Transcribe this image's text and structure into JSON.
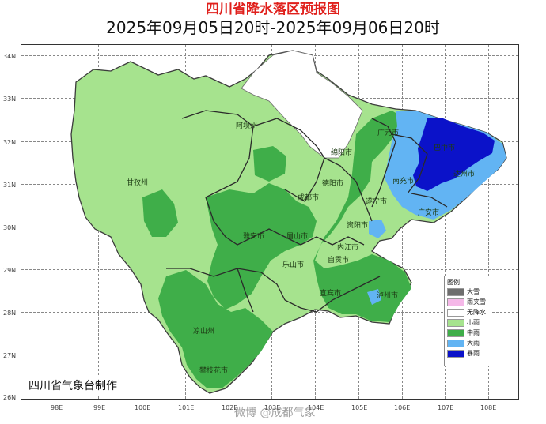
{
  "title": "四川省降水落区预报图",
  "subtitle": "2025年09月05日20时-2025年09月06日20时",
  "latitude_labels": [
    "34N",
    "33N",
    "32N",
    "31N",
    "30N",
    "29N",
    "28N",
    "27N",
    "26N"
  ],
  "longitude_labels": [
    "98E",
    "99E",
    "100E",
    "101E",
    "102E",
    "103E",
    "104E",
    "105E",
    "106E",
    "107E",
    "108E"
  ],
  "cities": [
    "阿坝州",
    "甘孜州",
    "绵阳市",
    "广元市",
    "巴中市",
    "达州市",
    "南充市",
    "德阳市",
    "成都市",
    "遂宁市",
    "广安市",
    "雅安市",
    "眉山市",
    "资阳市",
    "乐山市",
    "内江市",
    "自贡市",
    "宜宾市",
    "泸州市",
    "凉山州",
    "攀枝花市"
  ],
  "legend": {
    "title": "图例",
    "items": [
      {
        "label": "大雪",
        "color": "#6e6e6e"
      },
      {
        "label": "雨夹雪",
        "color": "#f5b8e8"
      },
      {
        "label": "无降水",
        "color": "#ffffff"
      },
      {
        "label": "小雨",
        "color": "#a6e38e"
      },
      {
        "label": "中雨",
        "color": "#3fae49"
      },
      {
        "label": "大雨",
        "color": "#62b4f3"
      },
      {
        "label": "暴雨",
        "color": "#0b12c9"
      }
    ]
  },
  "credit": "四川省气象台制作",
  "watermark": "微博 @成都气象",
  "colors": {
    "title": "#e0201c",
    "light_rain": "#a6e38e",
    "moderate_rain": "#3fae49",
    "heavy_rain": "#62b4f3",
    "rainstorm": "#0b12c9"
  }
}
